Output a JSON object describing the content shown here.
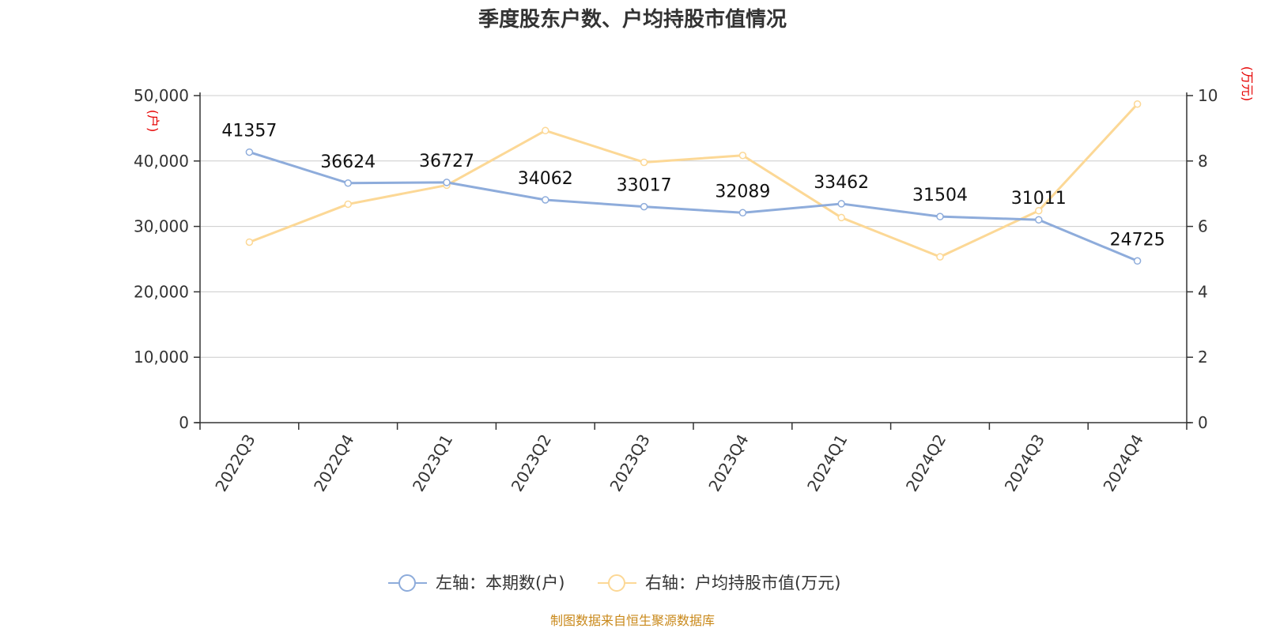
{
  "chart_data": {
    "type": "line",
    "title": "季度股东户数、户均持股市值情况",
    "categories": [
      "2022Q3",
      "2022Q4",
      "2023Q1",
      "2023Q2",
      "2023Q3",
      "2023Q4",
      "2024Q1",
      "2024Q2",
      "2024Q3",
      "2024Q4"
    ],
    "left_axis": {
      "unit": "(户)",
      "ylim": [
        0,
        50000
      ],
      "ticks": [
        "0",
        "10,000",
        "20,000",
        "30,000",
        "40,000",
        "50,000"
      ]
    },
    "right_axis": {
      "unit": "(万元)",
      "ylim": [
        0,
        10
      ],
      "ticks": [
        "0",
        "2",
        "4",
        "6",
        "8",
        "10"
      ]
    },
    "series": [
      {
        "name": "左轴：本期数(户)",
        "axis": "left",
        "color": "#8eacdb",
        "values": [
          41357,
          36624,
          36727,
          34062,
          33017,
          32089,
          33462,
          31504,
          31011,
          24725
        ],
        "labels": [
          "41357",
          "36624",
          "36727",
          "34062",
          "33017",
          "32089",
          "33462",
          "31504",
          "31011",
          "24725"
        ]
      },
      {
        "name": "右轴：户均持股市值(万元)",
        "axis": "right",
        "color": "#fcd896",
        "values": [
          5.52,
          6.68,
          7.26,
          8.93,
          7.96,
          8.17,
          6.27,
          5.07,
          6.48,
          9.74
        ]
      }
    ],
    "grid": true,
    "legend_position": "bottom"
  },
  "source_note": "制图数据来自恒生聚源数据库"
}
